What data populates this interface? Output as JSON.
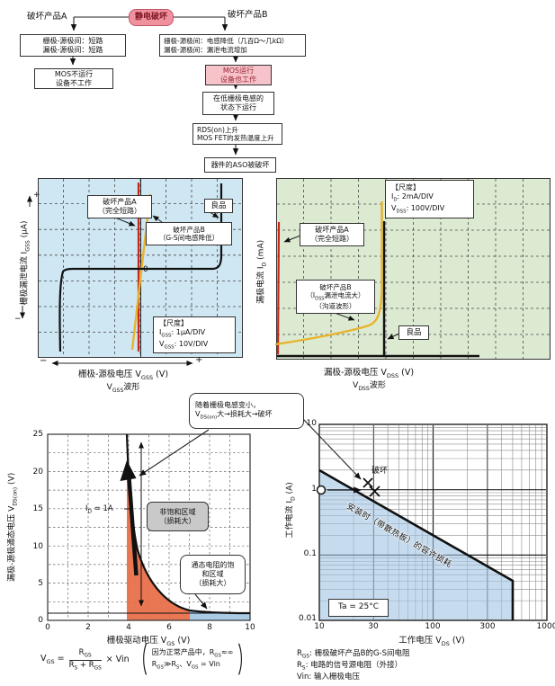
{
  "colors": {
    "accent_pink": "#f0929e",
    "flow_pink": "#f6c3ca",
    "panel_blue": "#cfe7f3",
    "panel_green": "#dcead2",
    "trace_red": "#c4281c",
    "trace_yellow": "#e7b42c",
    "region_orange": "#e8704a",
    "region_blue": "#a9cbe4",
    "aso_blue": "#a0c4e2"
  },
  "flow": {
    "title": "静电破坏",
    "label_a": "破坏产品A",
    "label_b": "破坏产品B",
    "a1": [
      "栅极-源极间：短路",
      "漏极-源极间：短路"
    ],
    "a2": [
      "MOS不运行",
      "设备不工作"
    ],
    "b1": [
      "栅极-源极间：电感降低（几百Ω～几kΩ）",
      "漏极-源极间：漏泄电流增加"
    ],
    "b2": [
      "MOS运行",
      "设备也工作"
    ],
    "b3": [
      "在低栅极电感的",
      "状态下运行"
    ],
    "b4": [
      "RDS(on)上升",
      "MOS FET的发热温度上升"
    ],
    "b5": "器件的ASO被破坏"
  },
  "gss": {
    "y_label": "栅极漏泄电流 I_{GSS} (μA)",
    "plus": "+",
    "minus": "−",
    "label_a": [
      "破坏产品A",
      "（完全短路）"
    ],
    "label_b": [
      "破坏产品B",
      "（G-S间电感降低）"
    ],
    "good": "良品",
    "zero": "0",
    "scale": [
      "【尺度】",
      "I_{GSS}: 1μA/DIV",
      "V_{GSS}: 10V/DIV"
    ],
    "x_minus": "−",
    "x_plus": "+",
    "x_label": "栅极-源极电压  V_{GSS}  (V)",
    "x_sub": "V_{GSS}波形"
  },
  "dss": {
    "scale": [
      "【尺度】",
      "I_{D}: 2mA/DIV",
      "V_{DSS}: 100V/DIV"
    ],
    "label_a": [
      "破坏产品A",
      "（完全短路）"
    ],
    "label_b": [
      "破坏产品B",
      "（I_{DSS}漏泄电流大）",
      "（沟道波形）"
    ],
    "good": "良品",
    "x_label": "漏极-源极电压  V_{DSS}  (V)",
    "x_sub": "V_{DSS}波形",
    "y_label": "漏极电流 I_{D} (mA)"
  },
  "vdson": {
    "callout": [
      "随着栅极电感变小，",
      "V_{DS(on)}大→损耗大→破坏"
    ],
    "y_ticks": [
      "25",
      "20",
      "15",
      "10",
      "5",
      "0"
    ],
    "x_ticks": [
      "0",
      "2",
      "4",
      "6",
      "8",
      "10"
    ],
    "y_label": "漏极-源极通态电压 V_{DS(on)} (V)",
    "x_label": "栅极驱动电压  V_{GS}  (V)",
    "id_label": "I_{D} = 1A",
    "region_nonsat": [
      "非饱和区域",
      "（损耗大）"
    ],
    "region_sat": [
      "通态电阻的饱",
      "和区域",
      "（损耗大）"
    ],
    "formula": {
      "lhs": "V_{GS} =",
      "num": "R_{GS}",
      "den": "R_{S} + R_{GS}",
      "rhs": "× Vin",
      "note": [
        "因为正常产品中，R_{GS}≈∞",
        "R_{GS}≫R_{S}、V_{GS} = Vin"
      ]
    }
  },
  "aso": {
    "y_ticks": [
      "10",
      "1",
      "0.1",
      "0.01"
    ],
    "x_ticks": [
      "10",
      "30",
      "100",
      "300",
      "1000"
    ],
    "y_label": "工作电流 I_{D} (A)",
    "x_label": "工作电压  V_{DS}  (V)",
    "destroy": "破坏",
    "diag": "安装时（带散热板）的容许损耗",
    "ta": "Ta = 25°C",
    "legend": [
      "R_{GS}: 栅极破坏产品B的G-S间电阻",
      "R_{S}: 电路的信号源电阻（外接）",
      "Vin: 输入栅极电压"
    ]
  },
  "chart_data": [
    {
      "id": "gss_waveform",
      "type": "line",
      "title": "V_GSS波形",
      "xlabel": "栅极-源极电压 V_GSS (V)",
      "ylabel": "栅极漏泄电流 I_GSS (μA)",
      "scale_per_div": {
        "I_GSS": "1μA/DIV",
        "V_GSS": "10V/DIV"
      },
      "grid": true,
      "series": [
        {
          "name": "破坏产品A（完全短路）",
          "shape": "vertical line at V_GSS = 0",
          "x_div": [
            0,
            0
          ],
          "y_div": [
            -3.5,
            3.5
          ]
        },
        {
          "name": "破坏产品B（G-S间电感降低）",
          "shape": "near-vertical resistive line through origin",
          "x_div": [
            -0.3,
            0.4
          ],
          "y_div": [
            -3.5,
            3.5
          ]
        },
        {
          "name": "良品",
          "shape": "flat near-zero leakage, sharp breakdown at both ends",
          "x_div": [
            -3.2,
            -3.2,
            3.2,
            3.2
          ],
          "y_div": [
            -3.3,
            0,
            0,
            3.3
          ]
        }
      ]
    },
    {
      "id": "dss_waveform",
      "type": "line",
      "title": "V_DSS波形",
      "xlabel": "漏极-源极电压 V_DSS (V)",
      "ylabel": "漏极电流 I_D (mA)",
      "scale_per_div": {
        "I_D": "2mA/DIV",
        "V_DSS": "100V/DIV"
      },
      "grid": true,
      "series": [
        {
          "name": "破坏产品A（完全短路）",
          "shape": "vertical line at V_DSS ≈ 0"
        },
        {
          "name": "破坏产品B（IDSS漏泄电流大，沟道波形）",
          "shape": "large leakage current gradually rising, then steep rise at breakdown"
        },
        {
          "name": "良品",
          "shape": "near-zero leakage with sharp vertical breakdown at rated V_DSS"
        }
      ]
    },
    {
      "id": "vdson_vs_vgs",
      "type": "line",
      "xlabel": "栅极驱动电压 V_GS (V)",
      "ylabel": "漏极-源极通态电压 V_DS(on) (V)",
      "xlim": [
        0,
        10
      ],
      "ylim": [
        0,
        25
      ],
      "grid": true,
      "condition": "I_D = 1A",
      "x": [
        3.9,
        4,
        4.2,
        4.5,
        5,
        5.5,
        6,
        7,
        8,
        10
      ],
      "y": [
        25,
        20,
        15,
        10,
        5,
        3,
        2,
        1.3,
        1.1,
        1.0
      ],
      "regions": [
        {
          "name": "非饱和区域（损耗大）",
          "x_range": [
            3.9,
            7
          ],
          "color": "orange-red"
        },
        {
          "name": "通态电阻的饱和区域（损耗大）",
          "x_range": [
            7,
            10
          ],
          "color": "light-blue"
        }
      ],
      "annotation": "随着栅极电感变小，V_DS(on)大→损耗大→破坏"
    },
    {
      "id": "aso",
      "type": "line",
      "xlabel": "工作电压 V_DS (V)",
      "ylabel": "工作电流 I_D (A)",
      "xscale": "log",
      "yscale": "log",
      "xlim": [
        10,
        1000
      ],
      "ylim": [
        0.01,
        10
      ],
      "boundary_name": "安装时（带散热板）的容许损耗",
      "boundary_x": [
        10,
        500,
        500
      ],
      "boundary_y": [
        2,
        0.04,
        0.01
      ],
      "operating_point": {
        "x": 10,
        "y": 1
      },
      "destroy_points_x": [
        28,
        33
      ],
      "destroy_points_y": [
        1.1,
        0.95
      ],
      "destroy_label": "破坏",
      "temperature": "Ta = 25°C"
    }
  ]
}
